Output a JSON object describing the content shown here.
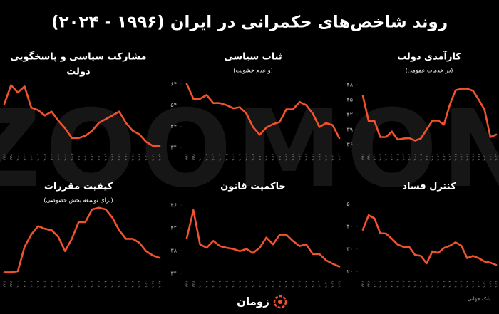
{
  "page_title": "روند شاخص‌های حکمرانی در ایران (۱۹۹۶ - ۲۰۲۴)",
  "watermark": "ZOOMON",
  "brand": "زومان",
  "source": "بانک جهانی",
  "chart_data": [
    {
      "type": "line",
      "title": "کارآمدی دولت",
      "subtitle": "(در خدمات عمومی)",
      "color": "#f0522d",
      "categories": [
        "۱۹۹۶",
        "۱۹۹۸",
        "۲۰۰۰",
        "۲۰۰۲",
        "۲۰۰۳",
        "۲۰۰۴",
        "۲۰۰۵",
        "۲۰۰۶",
        "۲۰۰۷",
        "۲۰۰۸",
        "۲۰۰۹",
        "۲۰۱۰",
        "۲۰۱۱",
        "۲۰۱۲",
        "۲۰۱۳",
        "۲۰۱۴",
        "۲۰۱۵",
        "۲۰۱۶",
        "۲۰۱۷",
        "۲۰۱۸",
        "۲۰۱۹",
        "۲۰۲۰",
        "۲۰۲۱",
        "۲۰۲۲"
      ],
      "values": [
        45.8,
        40.7,
        40.7,
        37.5,
        37.5,
        38.6,
        37.0,
        37.2,
        37.3,
        36.8,
        37.2,
        39.0,
        40.8,
        40.8,
        40.0,
        44.0,
        46.9,
        47.2,
        47.2,
        46.8,
        45.0,
        43.0,
        37.5,
        38.0
      ],
      "ylim": [
        35,
        49
      ],
      "yticks": [
        {
          "value": 48,
          "label": "۴۸"
        },
        {
          "value": 45,
          "label": "۴۵"
        },
        {
          "value": 42,
          "label": "۴۲"
        },
        {
          "value": 39,
          "label": "۳۹"
        },
        {
          "value": 36,
          "label": "۳۶"
        }
      ]
    },
    {
      "type": "line",
      "title": "ثبات سیاسی",
      "subtitle": "(و عدم خشونت)",
      "color": "#f0522d",
      "categories": [
        "۱۹۹۶",
        "۱۹۹۸",
        "۲۰۰۰",
        "۲۰۰۲",
        "۲۰۰۳",
        "۲۰۰۴",
        "۲۰۰۵",
        "۲۰۰۶",
        "۲۰۰۷",
        "۲۰۰۸",
        "۲۰۰۹",
        "۲۰۱۰",
        "۲۰۱۱",
        "۲۰۱۲",
        "۲۰۱۳",
        "۲۰۱۴",
        "۲۰۱۵",
        "۲۰۱۶",
        "۲۰۱۷",
        "۲۰۱۸",
        "۲۰۱۹",
        "۲۰۲۰",
        "۲۰۲۱",
        "۲۰۲۲"
      ],
      "values": [
        64,
        57,
        57,
        58.8,
        55,
        55,
        54,
        52.5,
        53,
        50,
        43.6,
        40,
        43.4,
        45,
        46,
        52,
        52,
        55.5,
        54,
        50,
        43.6,
        45.5,
        44.5,
        38.4
      ],
      "ylim": [
        33,
        66
      ],
      "yticks": [
        {
          "value": 64,
          "label": "۶۴"
        },
        {
          "value": 54,
          "label": "۵۴"
        },
        {
          "value": 44,
          "label": "۴۴"
        },
        {
          "value": 34,
          "label": "۳۴"
        }
      ]
    },
    {
      "type": "line",
      "title": [
        "مشارکت سیاسی و پاسخگویی",
        "دولت"
      ],
      "color": "#f0522d",
      "categories": [
        "۱۹۹۶",
        "۱۹۹۸",
        "۲۰۰۰",
        "۲۰۰۲",
        "۲۰۰۳",
        "۲۰۰۴",
        "۲۰۰۵",
        "۲۰۰۶",
        "۲۰۰۷",
        "۲۰۰۸",
        "۲۰۰۹",
        "۲۰۱۰",
        "۲۰۱۱",
        "۲۰۱۲",
        "۲۰۱۳",
        "۲۰۱۴",
        "۲۰۱۵",
        "۲۰۱۶",
        "۲۰۱۷",
        "۲۰۱۸",
        "۲۰۱۹",
        "۲۰۲۰",
        "۲۰۲۱",
        "۲۰۲۲"
      ],
      "values": [
        15,
        21.2,
        18.8,
        20.8,
        13.8,
        13,
        11.2,
        12.5,
        9.5,
        7,
        3.8,
        3.8,
        4.5,
        6.2,
        8.8,
        10,
        11.2,
        12.5,
        8.8,
        6.2,
        5,
        2.5,
        1.2,
        1.2
      ],
      "ylim": [
        0,
        23
      ]
    },
    {
      "type": "line",
      "title": "کنترل فساد",
      "color": "#f0522d",
      "categories": [
        "۱۹۹۶",
        "۱۹۹۸",
        "۲۰۰۰",
        "۲۰۰۲",
        "۲۰۰۳",
        "۲۰۰۴",
        "۲۰۰۵",
        "۲۰۰۶",
        "۲۰۰۷",
        "۲۰۰۸",
        "۲۰۰۹",
        "۲۰۱۰",
        "۲۰۱۱",
        "۲۰۱۲",
        "۲۰۱۳",
        "۲۰۱۴",
        "۲۰۱۵",
        "۲۰۱۶",
        "۲۰۱۷",
        "۲۰۱۸",
        "۲۰۱۹",
        "۲۰۲۰",
        "۲۰۲۱",
        "۲۰۲۲"
      ],
      "values": [
        38.6,
        45,
        43.6,
        37,
        36.9,
        34.6,
        32,
        31,
        31,
        27.4,
        27,
        23.7,
        29,
        28.3,
        30.5,
        31.5,
        33,
        31.5,
        26,
        27,
        26,
        24.5,
        24,
        23
      ],
      "ylim": [
        18,
        52
      ],
      "yticks": [
        {
          "value": 50,
          "label": "۵۰"
        },
        {
          "value": 40,
          "label": "۴۰"
        },
        {
          "value": 30,
          "label": "۳۰"
        },
        {
          "value": 20,
          "label": "۲۰"
        }
      ]
    },
    {
      "type": "line",
      "title": "حاکمیت قانون",
      "color": "#f0522d",
      "categories": [
        "۱۹۹۶",
        "۱۹۹۸",
        "۲۰۰۰",
        "۲۰۰۲",
        "۲۰۰۳",
        "۲۰۰۴",
        "۲۰۰۵",
        "۲۰۰۶",
        "۲۰۰۷",
        "۲۰۰۸",
        "۲۰۰۹",
        "۲۰۱۰",
        "۲۰۱۱",
        "۲۰۱۲",
        "۲۰۱۳",
        "۲۰۱۴",
        "۲۰۱۵",
        "۲۰۱۶",
        "۲۰۱۷",
        "۲۰۱۸",
        "۲۰۱۹",
        "۲۰۲۰",
        "۲۰۲۱",
        "۲۰۲۲"
      ],
      "values": [
        40.2,
        45.1,
        39.1,
        38.5,
        39.7,
        38.8,
        38.5,
        38.3,
        37.9,
        38.3,
        37.6,
        38.5,
        40.3,
        39.1,
        40.8,
        40.8,
        39.7,
        38.8,
        39.1,
        37.4,
        37.4,
        36.3,
        35.7,
        35.2
      ],
      "ylim": [
        33.5,
        47
      ],
      "yticks": [
        {
          "value": 46,
          "label": "۴۶"
        },
        {
          "value": 42,
          "label": "۴۲"
        },
        {
          "value": 38,
          "label": "۳۸"
        },
        {
          "value": 34,
          "label": "۳۴"
        }
      ]
    },
    {
      "type": "line",
      "title": "کیفیت مقررات",
      "subtitle": "(برای توسعه بخش خصوصی)",
      "color": "#f0522d",
      "categories": [
        "۱۹۹۶",
        "۱۹۹۸",
        "۲۰۰۰",
        "۲۰۰۲",
        "۲۰۰۳",
        "۲۰۰۴",
        "۲۰۰۵",
        "۲۰۰۶",
        "۲۰۰۷",
        "۲۰۰۸",
        "۲۰۰۹",
        "۲۰۱۰",
        "۲۰۱۱",
        "۲۰۱۲",
        "۲۰۱۳",
        "۲۰۱۴",
        "۲۰۱۵",
        "۲۰۱۶",
        "۲۰۱۷",
        "۲۰۱۸",
        "۲۰۱۹",
        "۲۰۲۰",
        "۲۰۲۱",
        "۲۰۲۲"
      ],
      "values": [
        1.2,
        1.2,
        1.5,
        8.8,
        12.5,
        15,
        14.2,
        13.8,
        11.8,
        7.5,
        11.2,
        16.2,
        16.2,
        20,
        20.5,
        20,
        17.5,
        13.8,
        11.2,
        11.2,
        10,
        7.5,
        6.2,
        5.5
      ],
      "ylim": [
        0,
        23
      ]
    }
  ]
}
